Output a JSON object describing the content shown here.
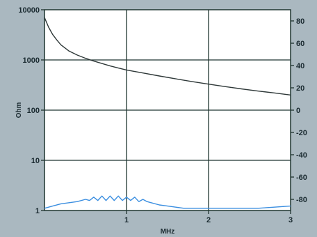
{
  "chart_data": {
    "type": "line",
    "xlabel": "MHz",
    "ylabel_left": "Ohm",
    "ylabel_right": "",
    "x_range": [
      0,
      3
    ],
    "x_ticks": [
      "1",
      "2",
      "3"
    ],
    "y_left_scale": "log",
    "y_left_range": [
      1,
      10000
    ],
    "y_left_ticks": [
      "10000",
      "1000",
      "100",
      "10",
      "1"
    ],
    "y_right_range": [
      -90,
      90
    ],
    "y_right_ticks": [
      "80",
      "60",
      "40",
      "20",
      "0",
      "-20",
      "-40",
      "-60",
      "-80"
    ],
    "grid": true,
    "legend": "none",
    "colors": {
      "plot_bg": "#ffffff",
      "frame_bg": "#aab8c0",
      "grid": "#1f3530",
      "impedance": "#2e3838",
      "phase": "#3a8ee0",
      "tick_text": "#1a2a30"
    },
    "series": [
      {
        "axis": "left",
        "color": "#2e3838",
        "x": [
          0.0,
          0.05,
          0.1,
          0.15,
          0.2,
          0.3,
          0.4,
          0.5,
          0.6,
          0.7,
          0.8,
          0.9,
          1.0,
          1.2,
          1.4,
          1.6,
          1.8,
          2.0,
          2.2,
          2.4,
          2.6,
          2.8,
          3.0
        ],
        "y": [
          7000,
          4500,
          3200,
          2500,
          2000,
          1500,
          1250,
          1080,
          950,
          850,
          760,
          690,
          630,
          550,
          480,
          420,
          370,
          330,
          295,
          265,
          240,
          220,
          200
        ]
      },
      {
        "axis": "right",
        "color": "#3a8ee0",
        "x": [
          0.0,
          0.1,
          0.2,
          0.3,
          0.4,
          0.5,
          0.55,
          0.6,
          0.65,
          0.7,
          0.75,
          0.8,
          0.85,
          0.9,
          0.95,
          1.0,
          1.05,
          1.1,
          1.15,
          1.2,
          1.25,
          1.3,
          1.4,
          1.5,
          1.6,
          1.7,
          1.8,
          1.9,
          2.0,
          2.2,
          2.4,
          2.6,
          2.8,
          3.0
        ],
        "y": [
          -88,
          -86,
          -84,
          -83,
          -82,
          -80,
          -81,
          -78,
          -81,
          -77,
          -81,
          -77,
          -81,
          -77,
          -81,
          -78,
          -81,
          -78,
          -82,
          -80,
          -82,
          -83,
          -85,
          -86,
          -87,
          -88,
          -88,
          -88,
          -88,
          -88,
          -88,
          -88,
          -87,
          -86
        ]
      }
    ]
  }
}
